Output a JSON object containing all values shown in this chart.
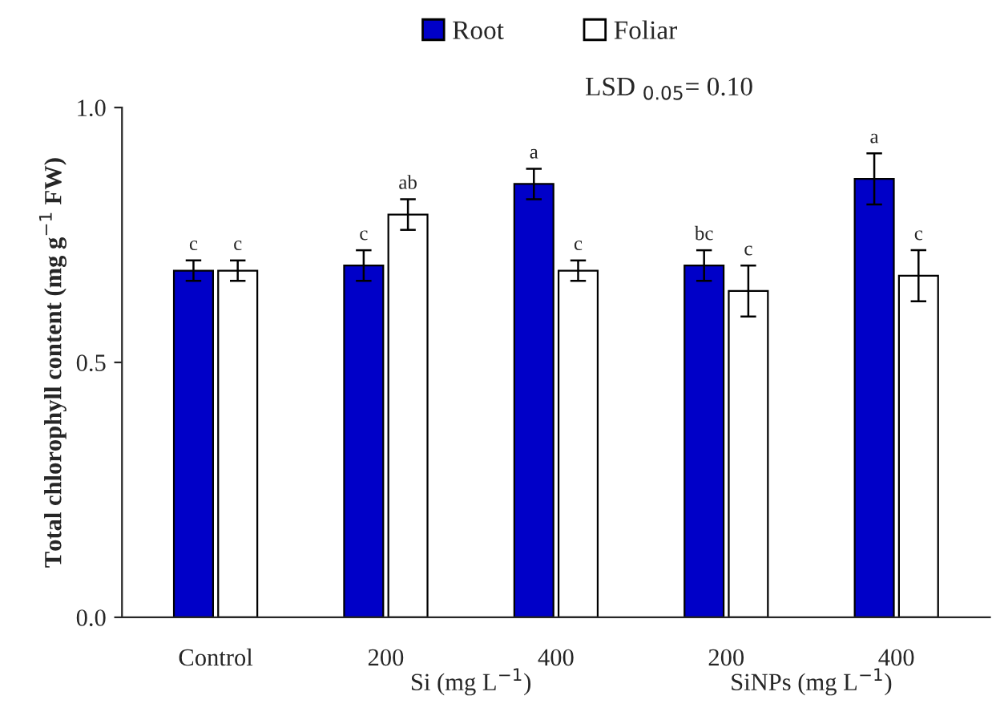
{
  "chart_data": {
    "type": "bar",
    "ylabel": "Total chlorophyll content (mg g$^{−1}$ FW)",
    "categories": [
      "Control",
      "200",
      "400",
      "200",
      "400"
    ],
    "series": [
      {
        "name": "Root",
        "color": "#0000c8",
        "values": [
          0.68,
          0.69,
          0.85,
          0.69,
          0.86
        ],
        "errors": [
          0.02,
          0.03,
          0.03,
          0.03,
          0.05
        ],
        "value_labels": [
          "c",
          "c",
          "a",
          "bc",
          "a"
        ]
      },
      {
        "name": "Foliar",
        "color": "#ffffff",
        "values": [
          0.68,
          0.79,
          0.68,
          0.64,
          0.67
        ],
        "errors": [
          0.02,
          0.03,
          0.02,
          0.05,
          0.05
        ],
        "value_labels": [
          "c",
          "ab",
          "c",
          "c",
          "c"
        ]
      }
    ],
    "annotations": [
      "LSD $_{0.05}$= 0.10",
      "Si (mg L$^{−1}$)",
      "SiNPs (mg L$^{−1}$)"
    ],
    "ylim": [
      0,
      1
    ],
    "yticks": [
      {
        "value": 0,
        "label": "0.0"
      },
      {
        "value": 0.5,
        "label": "0.5"
      },
      {
        "value": 1,
        "label": "1.0"
      }
    ],
    "legend": "top",
    "grid": false
  }
}
